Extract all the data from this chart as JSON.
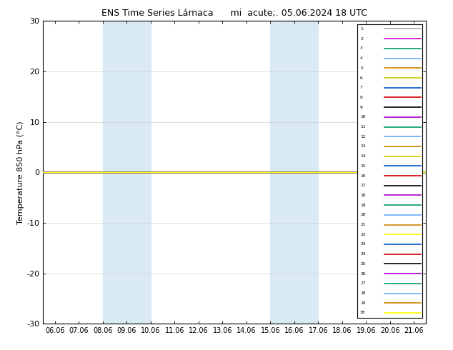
{
  "title_left": "ENS Time Series Lárnaca",
  "title_right": "mi  acute;. 05.06.2024 18 UTC",
  "ylabel": "Temperature 850 hPa (°C)",
  "ylim": [
    -30,
    30
  ],
  "yticks": [
    -30,
    -20,
    -10,
    0,
    10,
    20,
    30
  ],
  "xtick_labels": [
    "06.06",
    "07.06",
    "08.06",
    "09.06",
    "10.06",
    "11.06",
    "12.06",
    "13.06",
    "14.06",
    "15.06",
    "16.06",
    "17.06",
    "18.06",
    "19.06",
    "20.06",
    "21.06"
  ],
  "shade_color": "#daeaf5",
  "member_colors": [
    "#aaaaaa",
    "#cc00cc",
    "#00aa88",
    "#66aaff",
    "#cc8800",
    "#cccc00",
    "#0066cc",
    "#cc0000",
    "#000000",
    "#aa00cc",
    "#009988",
    "#66aaff",
    "#cc8800",
    "#cccc00",
    "#0066cc",
    "#cc0000",
    "#000000",
    "#aa00cc",
    "#009988",
    "#66aaff",
    "#cc8800",
    "#ffff00",
    "#0066cc",
    "#cc0000",
    "#000000",
    "#aa00cc",
    "#009988",
    "#66aaff",
    "#cc8800",
    "#ffff00"
  ],
  "member_labels": [
    "1",
    "2",
    "3",
    "4",
    "5",
    "6",
    "7",
    "8",
    "9",
    "10",
    "11",
    "12",
    "13",
    "14",
    "15",
    "16",
    "17",
    "18",
    "19",
    "20",
    "21",
    "22",
    "23",
    "24",
    "25",
    "26",
    "27",
    "28",
    "29",
    "30"
  ],
  "line_color": "#ffff00",
  "background_color": "#ffffff",
  "grid_color": "#d0d0d0"
}
